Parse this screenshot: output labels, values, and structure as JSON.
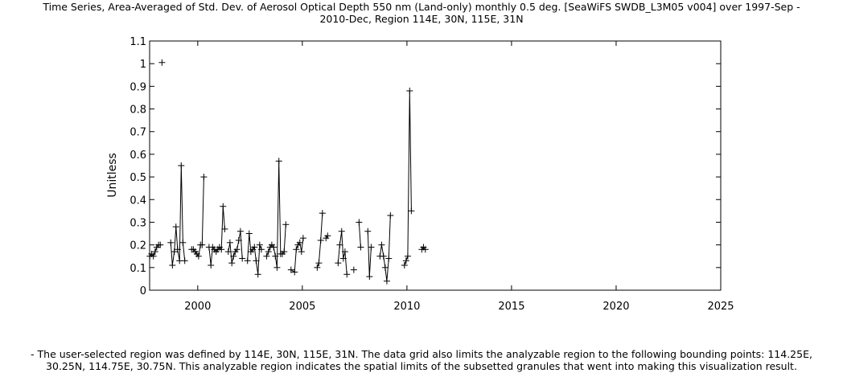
{
  "header": {
    "title_line1": "Time Series, Area-Averaged of Std. Dev. of Aerosol Optical Depth 550 nm (Land-only) monthly 0.5 deg. [SeaWiFS SWDB_L3M05 v004] over 1997-Sep -",
    "title_line2": "2010-Dec, Region 114E, 30N, 115E, 31N"
  },
  "footer": {
    "note_line1": "- The user-selected region was defined by 114E, 30N, 115E, 31N. The data grid also limits the analyzable region to the following bounding points: 114.25E,",
    "note_line2": "30.25N, 114.75E, 30.75N. This analyzable region indicates the spatial limits of the subsetted granules that went into making this visualization result."
  },
  "chart_data": {
    "type": "line",
    "title": "Time Series, Area-Averaged of Std. Dev. of Aerosol Optical Depth 550 nm (Land-only) monthly 0.5 deg. [SeaWiFS SWDB_L3M05 v004] over 1997-Sep - 2010-Dec, Region 114E, 30N, 115E, 31N",
    "xlabel": "",
    "ylabel": "Unitless",
    "xlim": [
      1997.7,
      2025
    ],
    "ylim": [
      0,
      1.1
    ],
    "xticks": [
      2000,
      2005,
      2010,
      2015,
      2020,
      2025
    ],
    "yticks": [
      0,
      0.1,
      0.2,
      0.3,
      0.4,
      0.5,
      0.6,
      0.7,
      0.8,
      0.9,
      1,
      1.1
    ],
    "grid": false,
    "marker": "+",
    "line_color": "#000000",
    "series": [
      {
        "segments": [
          [
            [
              1997.71,
              0.15
            ],
            [
              1997.79,
              0.16
            ],
            [
              1997.88,
              0.15
            ],
            [
              1997.96,
              0.17
            ],
            [
              1998.04,
              0.19
            ],
            [
              1998.13,
              0.2
            ],
            [
              1998.21,
              0.2
            ]
          ],
          [
            [
              1998.29,
              1.005
            ]
          ],
          [
            [
              1998.71,
              0.21
            ],
            [
              1998.79,
              0.11
            ],
            [
              1998.88,
              0.17
            ],
            [
              1998.96,
              0.28
            ],
            [
              1999.04,
              0.18
            ],
            [
              1999.13,
              0.13
            ],
            [
              1999.21,
              0.55
            ],
            [
              1999.29,
              0.21
            ],
            [
              1999.38,
              0.13
            ]
          ],
          [
            [
              1999.71,
              0.18
            ],
            [
              1999.79,
              0.18
            ],
            [
              1999.88,
              0.17
            ],
            [
              1999.96,
              0.16
            ],
            [
              2000.04,
              0.15
            ],
            [
              2000.13,
              0.2
            ],
            [
              2000.21,
              0.2
            ],
            [
              2000.29,
              0.5
            ]
          ],
          [
            [
              2000.54,
              0.19
            ],
            [
              2000.63,
              0.11
            ],
            [
              2000.71,
              0.19
            ],
            [
              2000.79,
              0.18
            ],
            [
              2000.88,
              0.17
            ],
            [
              2000.96,
              0.18
            ],
            [
              2001.04,
              0.19
            ],
            [
              2001.13,
              0.18
            ],
            [
              2001.21,
              0.37
            ],
            [
              2001.29,
              0.27
            ]
          ],
          [
            [
              2001.46,
              0.17
            ],
            [
              2001.54,
              0.21
            ],
            [
              2001.63,
              0.12
            ],
            [
              2001.71,
              0.15
            ],
            [
              2001.79,
              0.17
            ],
            [
              2001.88,
              0.18
            ],
            [
              2001.96,
              0.22
            ],
            [
              2002.04,
              0.26
            ],
            [
              2002.13,
              0.14
            ]
          ],
          [
            [
              2002.38,
              0.13
            ],
            [
              2002.46,
              0.25
            ],
            [
              2002.54,
              0.17
            ],
            [
              2002.63,
              0.18
            ],
            [
              2002.71,
              0.19
            ],
            [
              2002.79,
              0.13
            ],
            [
              2002.88,
              0.07
            ],
            [
              2002.96,
              0.2
            ],
            [
              2003.04,
              0.18
            ]
          ],
          [
            [
              2003.29,
              0.15
            ],
            [
              2003.38,
              0.17
            ],
            [
              2003.46,
              0.19
            ],
            [
              2003.54,
              0.2
            ],
            [
              2003.63,
              0.19
            ],
            [
              2003.71,
              0.15
            ],
            [
              2003.79,
              0.1
            ],
            [
              2003.88,
              0.57
            ],
            [
              2003.96,
              0.16
            ],
            [
              2004.04,
              0.16
            ],
            [
              2004.13,
              0.17
            ],
            [
              2004.21,
              0.29
            ]
          ],
          [
            [
              2004.46,
              0.09
            ],
            [
              2004.63,
              0.08
            ],
            [
              2004.71,
              0.18
            ],
            [
              2004.79,
              0.2
            ],
            [
              2004.88,
              0.21
            ],
            [
              2004.96,
              0.17
            ],
            [
              2005.04,
              0.23
            ]
          ],
          [
            [
              2005.71,
              0.1
            ],
            [
              2005.79,
              0.12
            ],
            [
              2005.88,
              0.22
            ],
            [
              2005.96,
              0.34
            ]
          ],
          [
            [
              2006.13,
              0.23
            ],
            [
              2006.21,
              0.24
            ]
          ],
          [
            [
              2006.71,
              0.12
            ],
            [
              2006.79,
              0.2
            ],
            [
              2006.88,
              0.26
            ],
            [
              2006.96,
              0.14
            ],
            [
              2007.04,
              0.17
            ],
            [
              2007.13,
              0.07
            ]
          ],
          [
            [
              2007.46,
              0.09
            ]
          ],
          [
            [
              2007.71,
              0.3
            ],
            [
              2007.79,
              0.19
            ]
          ],
          [
            [
              2008.13,
              0.26
            ],
            [
              2008.21,
              0.06
            ],
            [
              2008.29,
              0.19
            ]
          ],
          [
            [
              2008.71,
              0.15
            ],
            [
              2008.79,
              0.2
            ],
            [
              2008.88,
              0.15
            ],
            [
              2008.96,
              0.1
            ],
            [
              2009.04,
              0.04
            ],
            [
              2009.13,
              0.14
            ],
            [
              2009.21,
              0.33
            ]
          ],
          [
            [
              2009.88,
              0.11
            ],
            [
              2009.96,
              0.13
            ],
            [
              2010.04,
              0.15
            ],
            [
              2010.13,
              0.88
            ],
            [
              2010.21,
              0.35
            ]
          ],
          [
            [
              2010.71,
              0.18
            ],
            [
              2010.79,
              0.19
            ],
            [
              2010.88,
              0.18
            ]
          ]
        ]
      }
    ]
  }
}
